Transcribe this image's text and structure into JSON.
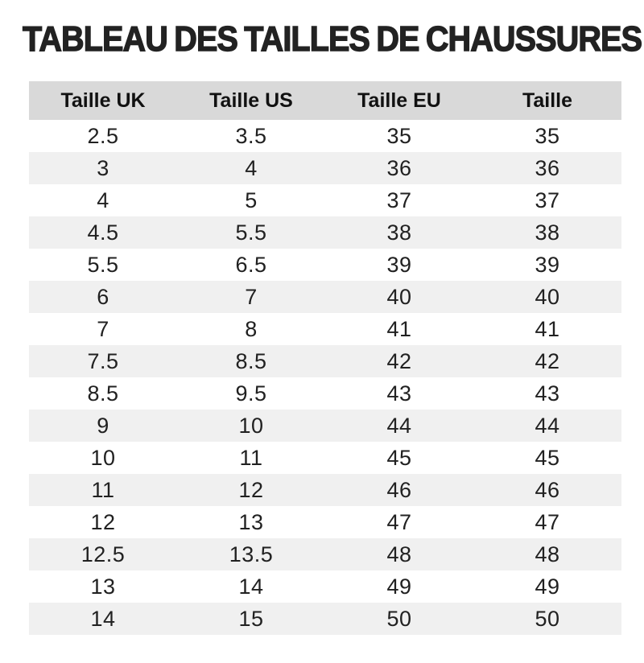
{
  "title": "TABLEAU DES TAILLES DE CHAUSSURES",
  "table": {
    "headers": [
      "Taille UK",
      "Taille US",
      "Taille EU",
      "Taille"
    ],
    "rows": [
      [
        "2.5",
        "3.5",
        "35",
        "35"
      ],
      [
        "3",
        "4",
        "36",
        "36"
      ],
      [
        "4",
        "5",
        "37",
        "37"
      ],
      [
        "4.5",
        "5.5",
        "38",
        "38"
      ],
      [
        "5.5",
        "6.5",
        "39",
        "39"
      ],
      [
        "6",
        "7",
        "40",
        "40"
      ],
      [
        "7",
        "8",
        "41",
        "41"
      ],
      [
        "7.5",
        "8.5",
        "42",
        "42"
      ],
      [
        "8.5",
        "9.5",
        "43",
        "43"
      ],
      [
        "9",
        "10",
        "44",
        "44"
      ],
      [
        "10",
        "11",
        "45",
        "45"
      ],
      [
        "11",
        "12",
        "46",
        "46"
      ],
      [
        "12",
        "13",
        "47",
        "47"
      ],
      [
        "12.5",
        "13.5",
        "48",
        "48"
      ],
      [
        "13",
        "14",
        "49",
        "49"
      ],
      [
        "14",
        "15",
        "50",
        "50"
      ]
    ]
  },
  "colors": {
    "header_bg": "#d9d9d9",
    "stripe_bg": "#f0f0f0",
    "title_color": "#222222",
    "text_color": "#212121"
  }
}
